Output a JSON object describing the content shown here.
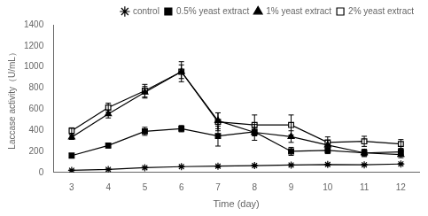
{
  "chart_data": {
    "type": "line",
    "x": [
      3,
      4,
      5,
      6,
      7,
      8,
      9,
      10,
      11,
      12
    ],
    "xlabel": "Time (day)",
    "ylabel": "Laccase activity（U/mL）",
    "xlim": [
      2.5,
      12.5
    ],
    "xticks": [
      3,
      4,
      5,
      6,
      7,
      8,
      9,
      10,
      11,
      12
    ],
    "ylim": [
      0,
      1400
    ],
    "yticks": [
      0,
      200,
      400,
      600,
      800,
      1000,
      1200,
      1400
    ],
    "grid": false,
    "legend": "upper right",
    "series": [
      {
        "name": "control",
        "color": "#000000",
        "marker": "star",
        "line_style": "solid",
        "values": [
          20,
          28,
          45,
          55,
          60,
          65,
          70,
          75,
          72,
          80
        ],
        "errors": [
          4,
          4,
          5,
          5,
          5,
          5,
          6,
          6,
          6,
          6
        ]
      },
      {
        "name": "0.5% yeast extract",
        "color": "#000000",
        "marker": "filled_square",
        "line_style": "solid",
        "values": [
          160,
          255,
          390,
          415,
          345,
          385,
          200,
          210,
          185,
          195
        ],
        "errors": [
          18,
          22,
          38,
          30,
          95,
          38,
          38,
          32,
          28,
          28
        ]
      },
      {
        "name": "1% yeast extract",
        "color": "#000000",
        "marker": "filled_triangle",
        "line_style": "solid",
        "values": [
          335,
          555,
          760,
          955,
          490,
          380,
          340,
          260,
          185,
          170
        ],
        "errors": [
          22,
          38,
          55,
          65,
          75,
          75,
          55,
          45,
          35,
          30
        ]
      },
      {
        "name": "2% yeast extract",
        "color": "#000000",
        "marker": "open_square",
        "line_style": "solid",
        "values": [
          395,
          615,
          775,
          955,
          480,
          450,
          450,
          285,
          295,
          270
        ],
        "errors": [
          28,
          42,
          60,
          95,
          85,
          95,
          95,
          52,
          48,
          42
        ]
      }
    ]
  }
}
